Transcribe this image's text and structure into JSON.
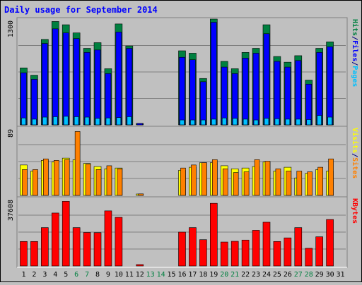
{
  "chart_data": [
    {
      "type": "bar",
      "panel": "pages-files-hits",
      "title": "Daily usage for September 2014",
      "categories": [
        "1",
        "2",
        "3",
        "4",
        "5",
        "6",
        "7",
        "8",
        "9",
        "10",
        "11",
        "12",
        "13",
        "14",
        "15",
        "16",
        "17",
        "18",
        "19",
        "20",
        "21",
        "22",
        "23",
        "24",
        "25",
        "26",
        "27",
        "28",
        "29",
        "30",
        "31"
      ],
      "weekend_days": [
        "6",
        "7",
        "13",
        "14",
        "20",
        "21",
        "27",
        "28"
      ],
      "ymax_label": "1300",
      "ylim": [
        0,
        1300
      ],
      "ylabel_parts": [
        {
          "text": "Pages",
          "color": "#00c0ff"
        },
        {
          "text": "/",
          "color": "#000080"
        },
        {
          "text": "Files",
          "color": "#0000ff"
        },
        {
          "text": "/",
          "color": "#000080"
        },
        {
          "text": "Hits",
          "color": "#008040"
        }
      ],
      "series": [
        {
          "name": "Hits",
          "color": "#008040",
          "values": [
            700,
            610,
            1050,
            1270,
            1230,
            1130,
            940,
            1010,
            690,
            1240,
            970,
            8,
            0,
            0,
            0,
            910,
            880,
            570,
            1330,
            780,
            690,
            890,
            940,
            1230,
            840,
            770,
            850,
            550,
            940,
            1020,
            0
          ]
        },
        {
          "name": "Files",
          "color": "#0000ff",
          "values": [
            640,
            560,
            1000,
            1180,
            1130,
            1060,
            890,
            920,
            630,
            1140,
            940,
            6,
            0,
            0,
            0,
            830,
            800,
            530,
            1260,
            710,
            630,
            820,
            880,
            1120,
            780,
            710,
            790,
            500,
            890,
            960,
            0
          ]
        },
        {
          "name": "Pages",
          "color": "#00c0ff",
          "values": [
            85,
            70,
            95,
            100,
            105,
            100,
            95,
            80,
            85,
            90,
            100,
            0,
            0,
            0,
            0,
            60,
            60,
            60,
            70,
            85,
            80,
            70,
            60,
            80,
            75,
            70,
            70,
            65,
            115,
            95,
            0
          ]
        }
      ]
    },
    {
      "type": "bar",
      "panel": "visits-sites",
      "categories": [
        "1",
        "2",
        "3",
        "4",
        "5",
        "6",
        "7",
        "8",
        "9",
        "10",
        "11",
        "12",
        "13",
        "14",
        "15",
        "16",
        "17",
        "18",
        "19",
        "20",
        "21",
        "22",
        "23",
        "24",
        "25",
        "26",
        "27",
        "28",
        "29",
        "30",
        "31"
      ],
      "ymax_label": "89",
      "ylim": [
        0,
        89
      ],
      "ylabel_parts": [
        {
          "text": "Sites",
          "color": "#ff8000"
        },
        {
          "text": "/",
          "color": "#000080"
        },
        {
          "text": "Visits",
          "color": "#ffff00"
        }
      ],
      "series": [
        {
          "name": "Visits",
          "color": "#ffff00",
          "values": [
            40,
            32,
            46,
            44,
            49,
            47,
            42,
            38,
            35,
            36,
            0,
            1,
            0,
            0,
            0,
            33,
            37,
            43,
            43,
            39,
            35,
            36,
            38,
            44,
            32,
            37,
            23,
            29,
            34,
            32,
            0
          ]
        },
        {
          "name": "Sites",
          "color": "#ff8000",
          "values": [
            34,
            34,
            48,
            46,
            47,
            84,
            41,
            34,
            39,
            35,
            0,
            2,
            0,
            0,
            0,
            36,
            40,
            43,
            47,
            35,
            30,
            31,
            47,
            45,
            35,
            32,
            32,
            31,
            37,
            48,
            0
          ]
        }
      ]
    },
    {
      "type": "bar",
      "panel": "kbytes",
      "categories": [
        "1",
        "2",
        "3",
        "4",
        "5",
        "6",
        "7",
        "8",
        "9",
        "10",
        "11",
        "12",
        "13",
        "14",
        "15",
        "16",
        "17",
        "18",
        "19",
        "20",
        "21",
        "22",
        "23",
        "24",
        "25",
        "26",
        "27",
        "28",
        "29",
        "30",
        "31"
      ],
      "ymax_label": "37608",
      "ylim": [
        0,
        37608
      ],
      "ylabel_parts": [
        {
          "text": "KBytes",
          "color": "#ff0000"
        }
      ],
      "series": [
        {
          "name": "KBytes",
          "color": "#ff0000",
          "values": [
            13600,
            13600,
            21300,
            29400,
            35900,
            21300,
            18600,
            18500,
            30600,
            27000,
            0,
            600,
            0,
            0,
            0,
            18800,
            21300,
            14600,
            34800,
            13300,
            13700,
            14400,
            19800,
            24300,
            13600,
            15600,
            21300,
            9800,
            16200,
            25800,
            0
          ]
        }
      ]
    }
  ]
}
